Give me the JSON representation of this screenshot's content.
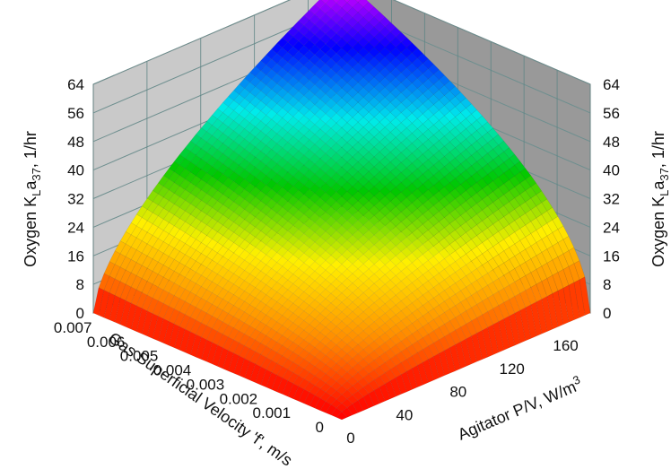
{
  "chart_data": {
    "type": "surface3d",
    "title": "",
    "zlabel_left": "Oxygen K_La_37, 1/hr",
    "zlabel_right": "Oxygen K_La_37, 1/hr",
    "zlabel_parts": {
      "prefix": "Oxygen K",
      "sub1": "L",
      "mid": "a",
      "sub2": "37",
      "suffix": ", 1/hr"
    },
    "xlabel": "Gas Superficial Velocity 'f', m/s",
    "ylabel": "Agitator P/V, W/m3",
    "ylabel_parts": {
      "text": "Agitator P/V, W/m",
      "sup": "3"
    },
    "z_ticks": [
      "0",
      "8",
      "16",
      "24",
      "32",
      "40",
      "48",
      "56",
      "64"
    ],
    "x_ticks": [
      "0",
      "0.001",
      "0.002",
      "0.003",
      "0.004",
      "0.005",
      "0.006",
      "0.007"
    ],
    "y_ticks": [
      "0",
      "40",
      "80",
      "120",
      "160"
    ],
    "xlim": [
      0,
      0.0075
    ],
    "ylim": [
      0,
      185
    ],
    "zlim": [
      0,
      64
    ],
    "grid": true,
    "colormap": [
      "red",
      "orange",
      "yellow",
      "green",
      "cyan",
      "blue",
      "magenta"
    ],
    "surface": {
      "x": [
        0,
        0.0075
      ],
      "y": [
        0,
        185
      ],
      "corner_values": {
        "x0_y0": 0,
        "xmax_y0": 0,
        "x0_ymax": 0,
        "xmax_ymax": 64
      },
      "model": "z = 64 * (x/0.0075)^0.5 * (y/185)^0.6 (clipped at 64)"
    }
  }
}
